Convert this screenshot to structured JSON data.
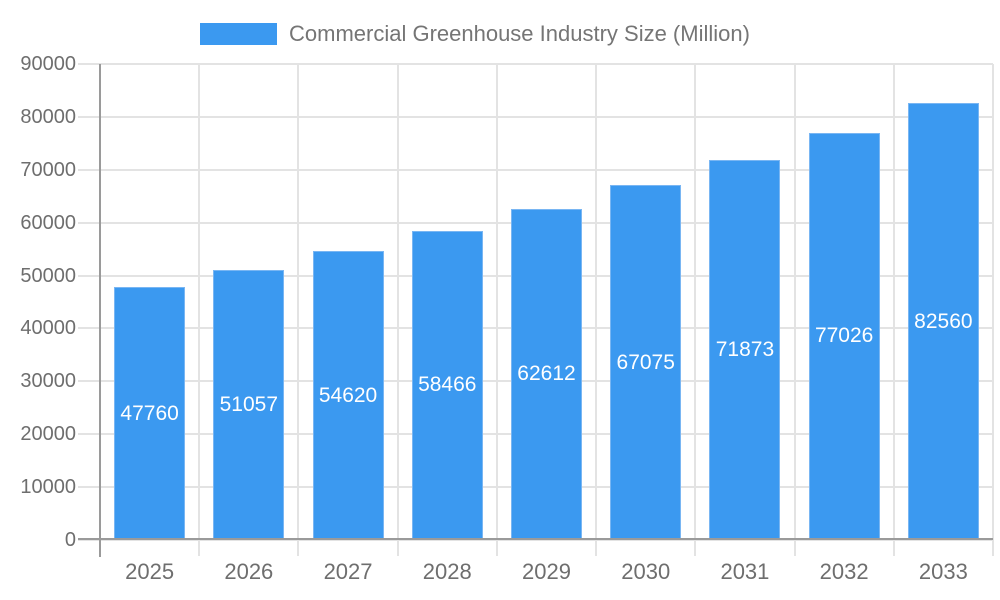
{
  "chart_data": {
    "type": "bar",
    "title": "Commercial Greenhouse Industry Size (Million)",
    "legend_position": "top",
    "legend_entries": [
      "Commercial Greenhouse Industry Size (Million)"
    ],
    "categories": [
      "2025",
      "2026",
      "2027",
      "2028",
      "2029",
      "2030",
      "2031",
      "2032",
      "2033"
    ],
    "series": [
      {
        "name": "Commercial Greenhouse Industry Size (Million)",
        "values": [
          47760,
          51057,
          54620,
          58466,
          62612,
          67075,
          71873,
          77026,
          82560
        ]
      }
    ],
    "data_labels": [
      "47760",
      "51057",
      "54620",
      "58466",
      "62612",
      "67075",
      "71873",
      "77026",
      "82560"
    ],
    "xlabel": "",
    "ylabel": "",
    "ylim": [
      0,
      90000
    ],
    "ytick_step": 10000,
    "yticks": [
      0,
      10000,
      20000,
      30000,
      40000,
      50000,
      60000,
      70000,
      80000,
      90000
    ],
    "ytick_labels": [
      "0",
      "10000",
      "20000",
      "30000",
      "40000",
      "50000",
      "60000",
      "70000",
      "80000",
      "90000"
    ],
    "grid": true,
    "colors": {
      "bar_fill": "#3B99F0",
      "bar_border": "#79B6F3",
      "grid_line": "#E3E3E3",
      "axis_line": "#9A9A9A",
      "tick_label": "#6E6E6E",
      "legend_text": "#757575",
      "data_label": "#FFFFFF",
      "background": "#FFFFFF"
    }
  }
}
